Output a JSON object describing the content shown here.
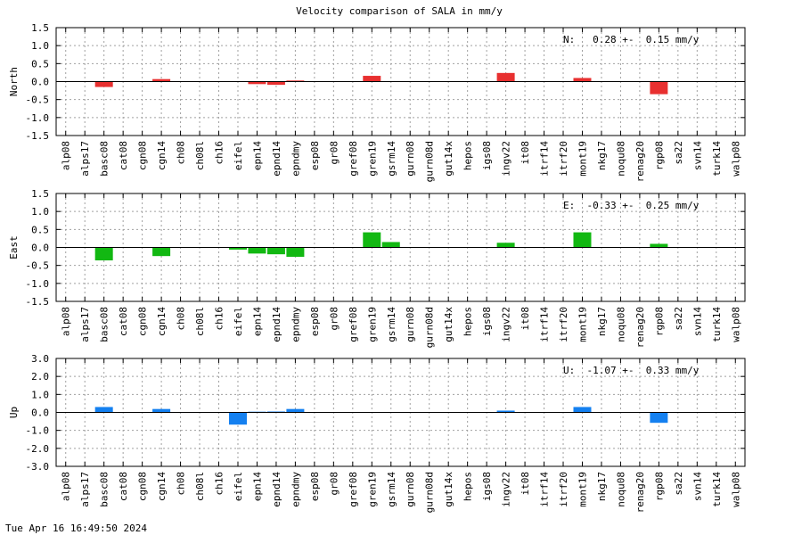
{
  "timestamp": "Tue Apr 16 16:49:50 2024",
  "chart_data": {
    "type": "bar",
    "title": "Velocity comparison of SALA in mm/y",
    "categories": [
      "alp08",
      "alps17",
      "basc08",
      "cat08",
      "cgn08",
      "cgn14",
      "ch08",
      "ch08l",
      "ch16",
      "eifel",
      "epn14",
      "epnd14",
      "epndmy",
      "esp08",
      "gr08",
      "gref08",
      "gren19",
      "gsrm14",
      "gurn08",
      "gurn08d",
      "gut14x",
      "hepos",
      "igs08",
      "ingv22",
      "it08",
      "itrf14",
      "itrf20",
      "mont19",
      "nkg17",
      "noqu08",
      "renag20",
      "rgp08",
      "sa22",
      "svn14",
      "turk14",
      "walp08"
    ],
    "grid": true,
    "panels": [
      {
        "name": "North",
        "ylabel": "North",
        "ylim": [
          -1.5,
          1.5
        ],
        "yticks": [
          "-1.5",
          "-1.0",
          "-0.5",
          "0.0",
          "0.5",
          "1.0",
          "1.5"
        ],
        "color": "#e83030",
        "annotation": "N:   0.28 +-  0.15 mm/y",
        "values": [
          null,
          null,
          -0.15,
          null,
          null,
          0.07,
          null,
          null,
          null,
          null,
          -0.07,
          -0.09,
          0.03,
          null,
          null,
          null,
          0.16,
          null,
          null,
          null,
          null,
          null,
          null,
          0.24,
          null,
          null,
          null,
          0.1,
          null,
          null,
          null,
          -0.35,
          null,
          null,
          null,
          null
        ]
      },
      {
        "name": "East",
        "ylabel": "East",
        "ylim": [
          -1.5,
          1.5
        ],
        "yticks": [
          "-1.5",
          "-1.0",
          "-0.5",
          "0.0",
          "0.5",
          "1.0",
          "1.5"
        ],
        "color": "#12b812",
        "annotation": "E:  -0.33 +-  0.25 mm/y",
        "values": [
          null,
          null,
          -0.36,
          null,
          null,
          -0.24,
          null,
          null,
          null,
          -0.06,
          -0.17,
          -0.19,
          -0.26,
          null,
          null,
          null,
          0.42,
          0.15,
          null,
          null,
          null,
          null,
          null,
          0.13,
          null,
          null,
          null,
          0.42,
          null,
          null,
          null,
          0.1,
          null,
          null,
          null,
          null
        ]
      },
      {
        "name": "Up",
        "ylabel": "Up",
        "ylim": [
          -3.0,
          3.0
        ],
        "yticks": [
          "-3.0",
          "-2.0",
          "-1.0",
          "0.0",
          "1.0",
          "2.0",
          "3.0"
        ],
        "color": "#1480f0",
        "annotation": "U:  -1.07 +-  0.33 mm/y",
        "values": [
          null,
          null,
          0.3,
          null,
          null,
          0.19,
          null,
          null,
          null,
          -0.68,
          0.04,
          0.05,
          0.19,
          null,
          null,
          null,
          null,
          null,
          null,
          null,
          null,
          null,
          null,
          0.1,
          null,
          null,
          null,
          0.3,
          null,
          null,
          null,
          -0.58,
          null,
          null,
          null,
          null
        ]
      }
    ]
  }
}
